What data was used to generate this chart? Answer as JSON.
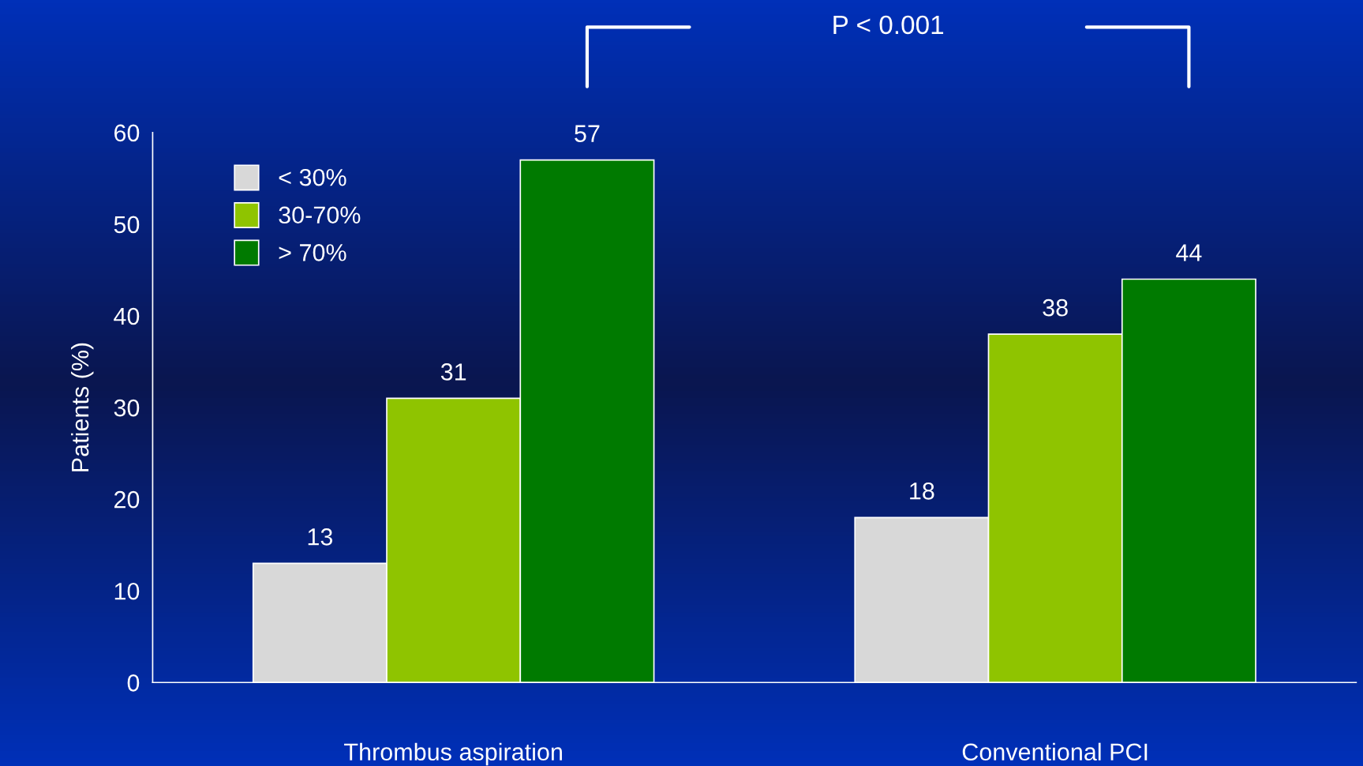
{
  "chart_data": {
    "type": "bar",
    "ylabel": "Patients (%)",
    "categories": [
      "Thrombus aspiration",
      "Conventional PCI"
    ],
    "series": [
      {
        "name": "< 30%",
        "color": "#d8d8d8",
        "values": [
          13,
          18
        ]
      },
      {
        "name": "30-70%",
        "color": "#8fc400",
        "values": [
          31,
          38
        ]
      },
      {
        "name": "> 70%",
        "color": "#007a00",
        "values": [
          57,
          44
        ]
      }
    ],
    "ylim": [
      0,
      60
    ],
    "yticks": [
      0,
      10,
      20,
      30,
      40,
      50,
      60
    ],
    "data_labels": true,
    "legend": "top left",
    "grid": false,
    "annotations": [
      "P < 0.001"
    ]
  }
}
